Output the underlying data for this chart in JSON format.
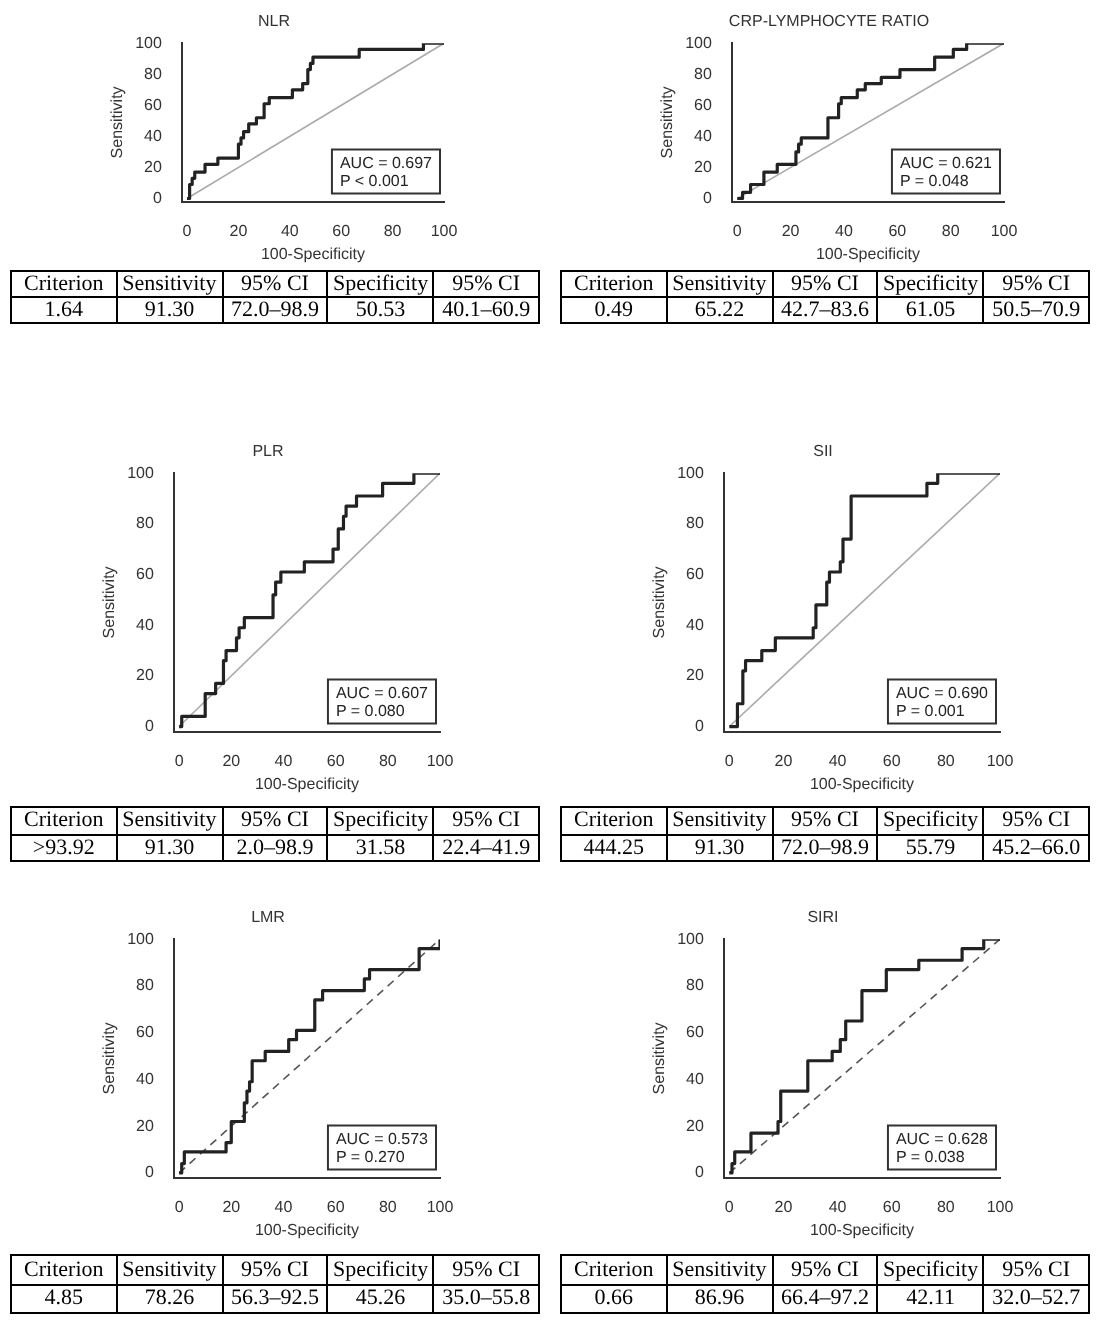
{
  "chart_data": [
    {
      "type": "line",
      "title": "NLR",
      "xlabel": "100-Specificity",
      "ylabel": "Sensitivity",
      "xlim": [
        -2,
        100
      ],
      "ylim": [
        -2,
        100
      ],
      "xticks": [
        0,
        20,
        40,
        60,
        80,
        100
      ],
      "yticks": [
        0,
        20,
        40,
        60,
        80,
        100
      ],
      "grid": false,
      "legend": false,
      "marker": "none",
      "annotations": [
        "AUC = 0.697",
        "P < 0.001"
      ],
      "series": [
        {
          "color": "#222222",
          "line_style": "solid",
          "x": [
            0,
            1,
            1,
            2,
            2,
            3,
            3,
            7,
            7,
            12,
            12,
            20,
            20,
            21,
            21,
            22,
            22,
            24,
            24,
            27,
            27,
            30,
            30,
            32,
            32,
            41,
            41,
            45,
            45,
            47,
            47,
            48,
            48,
            49,
            49,
            67,
            67,
            92,
            92,
            100
          ],
          "values": [
            0,
            0,
            9,
            9,
            13,
            13,
            17,
            17,
            22,
            22,
            26,
            26,
            35,
            35,
            39,
            39,
            43,
            43,
            48,
            48,
            52,
            52,
            61,
            61,
            65,
            65,
            70,
            70,
            74,
            74,
            83,
            83,
            87,
            87,
            91,
            91,
            96,
            96,
            100,
            100
          ]
        },
        {
          "color": "#aaaaaa",
          "line_style": "solid",
          "x": [
            0,
            100
          ],
          "values": [
            0,
            100
          ]
        }
      ]
    },
    {
      "type": "line",
      "title": "CRP-LYMPHOCYTE RATIO",
      "xlabel": "100-Specificity",
      "ylabel": "Sensitivity",
      "xlim": [
        -2,
        100
      ],
      "ylim": [
        -2,
        100
      ],
      "xticks": [
        0,
        20,
        40,
        60,
        80,
        100
      ],
      "yticks": [
        0,
        20,
        40,
        60,
        80,
        100
      ],
      "grid": false,
      "legend": false,
      "marker": "none",
      "annotations": [
        "AUC = 0.621",
        "P = 0.048"
      ],
      "series": [
        {
          "color": "#222222",
          "line_style": "solid",
          "x": [
            0,
            2,
            2,
            5,
            5,
            10,
            10,
            15,
            15,
            22,
            22,
            23,
            23,
            24,
            24,
            34,
            34,
            38,
            38,
            39,
            39,
            45,
            45,
            48,
            48,
            54,
            54,
            61,
            61,
            74,
            74,
            81,
            81,
            86,
            86,
            100
          ],
          "values": [
            0,
            0,
            4,
            4,
            9,
            9,
            17,
            17,
            22,
            22,
            30,
            30,
            35,
            35,
            39,
            39,
            52,
            52,
            61,
            61,
            65,
            65,
            70,
            70,
            74,
            74,
            78,
            78,
            83,
            83,
            91,
            91,
            96,
            96,
            100,
            100
          ]
        },
        {
          "color": "#aaaaaa",
          "line_style": "solid",
          "x": [
            0,
            100
          ],
          "values": [
            0,
            100
          ]
        }
      ]
    },
    {
      "type": "other",
      "annotations": [
        "Criterion",
        "Sensitivity",
        "95% CI",
        "Specificity",
        "95% CI",
        "1.64",
        "91.30",
        "72.0–98.9",
        "50.53",
        "40.1–60.9"
      ]
    },
    {
      "type": "other",
      "annotations": [
        "Criterion",
        "Sensitivity",
        "95% CI",
        "Specificity",
        "95% CI",
        "0.49",
        "65.22",
        "42.7–83.6",
        "61.05",
        "50.5–70.9"
      ]
    },
    {
      "type": "line",
      "title": "PLR",
      "xlabel": "100-Specificity",
      "ylabel": "Sensitivity",
      "xlim": [
        -2,
        100
      ],
      "ylim": [
        -2,
        100
      ],
      "xticks": [
        0,
        20,
        40,
        60,
        80,
        100
      ],
      "yticks": [
        0,
        20,
        40,
        60,
        80,
        100
      ],
      "grid": false,
      "legend": false,
      "marker": "none",
      "annotations": [
        "AUC = 0.607",
        "P = 0.080"
      ],
      "series": [
        {
          "color": "#222222",
          "line_style": "solid",
          "x": [
            0,
            1,
            1,
            10,
            10,
            14,
            14,
            17,
            17,
            18,
            18,
            22,
            22,
            23,
            23,
            25,
            25,
            36,
            36,
            37,
            37,
            39,
            39,
            48,
            48,
            59,
            59,
            61,
            61,
            63,
            63,
            64,
            64,
            68,
            68,
            78,
            78,
            90,
            90,
            100
          ],
          "values": [
            0,
            0,
            4,
            4,
            13,
            13,
            17,
            17,
            26,
            26,
            30,
            30,
            35,
            35,
            39,
            39,
            43,
            43,
            52,
            52,
            57,
            57,
            61,
            61,
            65,
            65,
            70,
            70,
            78,
            78,
            83,
            83,
            87,
            87,
            91,
            91,
            96,
            96,
            100,
            100
          ]
        },
        {
          "color": "#aaaaaa",
          "line_style": "solid",
          "x": [
            0,
            100
          ],
          "values": [
            0,
            100
          ]
        }
      ]
    },
    {
      "type": "line",
      "title": "SII",
      "xlabel": "100-Specificity",
      "ylabel": "Sensitivity",
      "xlim": [
        -2,
        100
      ],
      "ylim": [
        -2,
        100
      ],
      "xticks": [
        0,
        20,
        40,
        60,
        80,
        100
      ],
      "yticks": [
        0,
        20,
        40,
        60,
        80,
        100
      ],
      "grid": false,
      "legend": false,
      "marker": "none",
      "annotations": [
        "AUC = 0.690",
        "P = 0.001"
      ],
      "series": [
        {
          "color": "#222222",
          "line_style": "solid",
          "x": [
            0,
            3,
            3,
            5,
            5,
            6,
            6,
            12,
            12,
            17,
            17,
            31,
            31,
            32,
            32,
            36,
            36,
            37,
            37,
            41,
            41,
            42,
            42,
            45,
            45,
            73,
            73,
            77,
            77,
            100
          ],
          "values": [
            0,
            0,
            9,
            9,
            22,
            22,
            26,
            26,
            30,
            30,
            35,
            35,
            39,
            39,
            48,
            48,
            57,
            57,
            61,
            61,
            65,
            65,
            74,
            74,
            91,
            91,
            96,
            96,
            100,
            100
          ]
        },
        {
          "color": "#aaaaaa",
          "line_style": "solid",
          "x": [
            0,
            100
          ],
          "values": [
            0,
            100
          ]
        }
      ]
    },
    {
      "type": "other",
      "annotations": [
        "Criterion",
        "Sensitivity",
        "95% CI",
        "Specificity",
        "95% CI",
        ">93.92",
        "91.30",
        "2.0–98.9",
        "31.58",
        "22.4–41.9"
      ]
    },
    {
      "type": "other",
      "annotations": [
        "Criterion",
        "Sensitivity",
        "95% CI",
        "Specificity",
        "95% CI",
        "444.25",
        "91.30",
        "72.0–98.9",
        "55.79",
        "45.2–66.0"
      ]
    },
    {
      "type": "line",
      "title": "LMR",
      "xlabel": "100-Specificity",
      "ylabel": "Sensitivity",
      "xlim": [
        -2,
        100
      ],
      "ylim": [
        -2,
        100
      ],
      "xticks": [
        0,
        20,
        40,
        60,
        80,
        100
      ],
      "yticks": [
        0,
        20,
        40,
        60,
        80,
        100
      ],
      "grid": false,
      "legend": false,
      "marker": "none",
      "annotations": [
        "AUC = 0.573",
        "P = 0.270"
      ],
      "series": [
        {
          "color": "#222222",
          "line_style": "solid",
          "x": [
            0,
            1,
            1,
            2,
            2,
            18,
            18,
            20,
            20,
            25,
            25,
            26,
            26,
            27,
            27,
            28,
            28,
            33,
            33,
            42,
            42,
            45,
            45,
            52,
            52,
            55,
            55,
            71,
            71,
            73,
            73,
            92,
            92,
            100,
            100
          ],
          "values": [
            0,
            0,
            4,
            4,
            9,
            9,
            13,
            13,
            22,
            22,
            30,
            30,
            35,
            35,
            39,
            39,
            48,
            48,
            52,
            52,
            57,
            57,
            61,
            61,
            74,
            74,
            78,
            78,
            83,
            83,
            87,
            87,
            96,
            96,
            100
          ]
        },
        {
          "color": "#555555",
          "line_style": "dashed",
          "x": [
            0,
            100
          ],
          "values": [
            0,
            100
          ]
        }
      ]
    },
    {
      "type": "line",
      "title": "SIRI",
      "xlabel": "100-Specificity",
      "ylabel": "Sensitivity",
      "xlim": [
        -2,
        100
      ],
      "ylim": [
        -2,
        100
      ],
      "xticks": [
        0,
        20,
        40,
        60,
        80,
        100
      ],
      "yticks": [
        0,
        20,
        40,
        60,
        80,
        100
      ],
      "grid": false,
      "legend": false,
      "marker": "none",
      "annotations": [
        "AUC = 0.628",
        "P = 0.038"
      ],
      "series": [
        {
          "color": "#222222",
          "line_style": "solid",
          "x": [
            0,
            1,
            1,
            2,
            2,
            8,
            8,
            18,
            18,
            19,
            19,
            29,
            29,
            38,
            38,
            41,
            41,
            43,
            43,
            49,
            49,
            58,
            58,
            70,
            70,
            86,
            86,
            94,
            94,
            100
          ],
          "values": [
            0,
            0,
            4,
            4,
            9,
            9,
            17,
            17,
            22,
            22,
            35,
            35,
            48,
            48,
            52,
            52,
            57,
            57,
            65,
            65,
            78,
            78,
            87,
            87,
            91,
            91,
            96,
            96,
            100,
            100
          ]
        },
        {
          "color": "#555555",
          "line_style": "dashed",
          "x": [
            0,
            100
          ],
          "values": [
            0,
            100
          ]
        }
      ]
    },
    {
      "type": "other",
      "annotations": [
        "Criterion",
        "Sensitivity",
        "95% CI",
        "Specificity",
        "95% CI",
        "4.85",
        "78.26",
        "56.3–92.5",
        "45.26",
        "35.0–55.8"
      ]
    },
    {
      "type": "other",
      "annotations": [
        "Criterion",
        "Sensitivity",
        "95% CI",
        "Specificity",
        "95% CI",
        "0.66",
        "86.96",
        "66.4–97.2",
        "42.11",
        "32.0–52.7"
      ]
    }
  ]
}
